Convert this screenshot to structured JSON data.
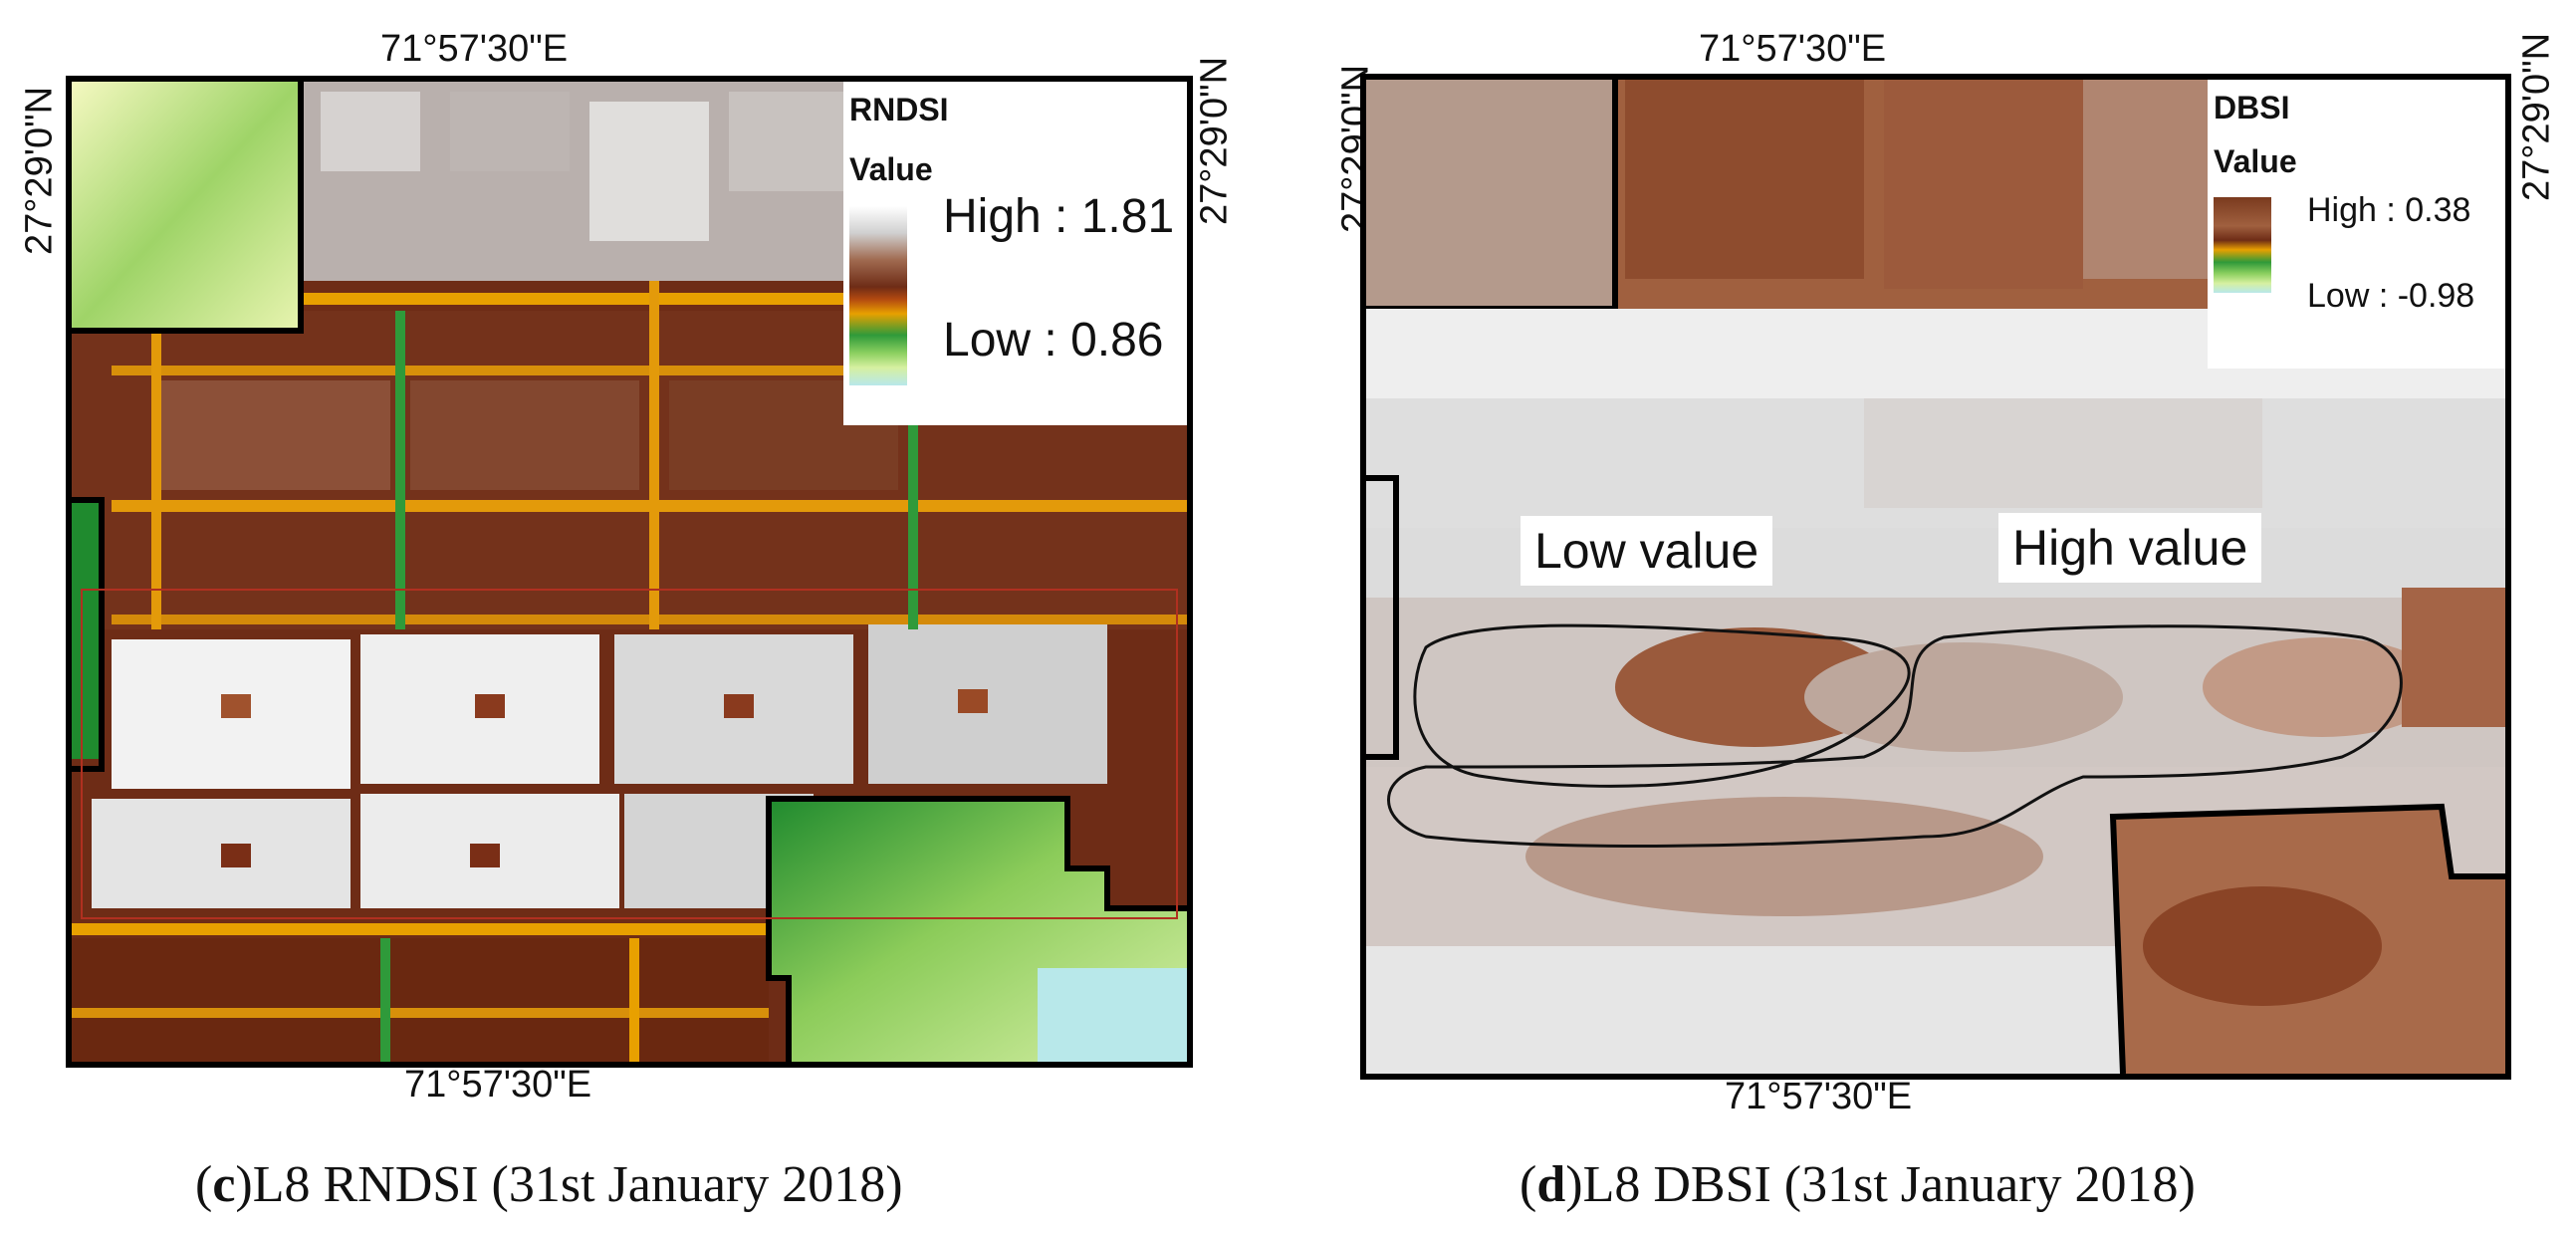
{
  "panel_c": {
    "coord_top": "71°57'30\"E",
    "coord_bottom": "71°57'30\"E",
    "coord_left": "27°29'0\"N",
    "coord_right": "27°29'0\"N",
    "legend": {
      "title": "RNDSI",
      "value_label": "Value",
      "high": "High : 1.81",
      "low": "Low : 0.86"
    },
    "caption_letter": "c",
    "caption_text": ")L8 RNDSI (31st January 2018)"
  },
  "panel_d": {
    "coord_top": "71°57'30\"E",
    "coord_bottom": "71°57'30\"E",
    "coord_left": "27°29'0\"N",
    "coord_right": "27°29'0\"N",
    "legend": {
      "title": "DBSI",
      "value_label": "Value",
      "high": "High : 0.38",
      "low": "Low : -0.98"
    },
    "annotation_left": "Low value",
    "annotation_right": "High value",
    "caption_letter": "d",
    "caption_text": ")L8 DBSI (31st January 2018)"
  },
  "colors": {
    "brown": "#6e2c16",
    "mid_brown": "#9a5a3c",
    "light_gray": "#e6e6e6",
    "orange": "#e8a000",
    "green": "#2f9a3a",
    "light_green": "#d6f0a0",
    "light_blue": "#b8e8ea"
  }
}
